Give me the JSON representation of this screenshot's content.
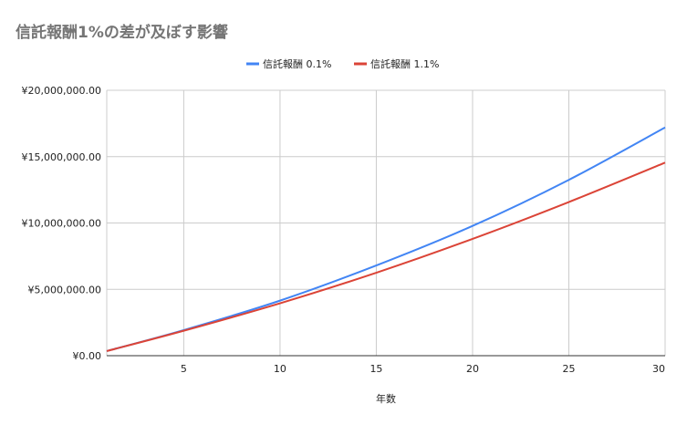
{
  "chart_data": {
    "type": "line",
    "title": "信託報酬1%の差が及ぼす影響",
    "xlabel": "年数",
    "ylabel": "",
    "xlim": [
      1,
      30
    ],
    "ylim": [
      0,
      20000000
    ],
    "x_ticks": [
      5,
      10,
      15,
      20,
      25,
      30
    ],
    "y_ticks": [
      0,
      5000000,
      10000000,
      15000000,
      20000000
    ],
    "y_tick_labels": [
      "¥0.00",
      "¥5,000,000.00",
      "¥10,000,000.00",
      "¥15,000,000.00",
      "¥20,000,000.00"
    ],
    "x_tick_labels": [
      "5",
      "10",
      "15",
      "20",
      "25",
      "30"
    ],
    "grid": true,
    "legend_position": "top",
    "x": [
      1,
      5,
      10,
      15,
      20,
      25,
      30
    ],
    "series": [
      {
        "name": "信託報酬 0.1%",
        "color": "#4285f4",
        "values": [
          350000,
          1930000,
          4150000,
          6800000,
          9780000,
          13250000,
          17200000
        ]
      },
      {
        "name": "信託報酬 1.1%",
        "color": "#db4437",
        "values": [
          350000,
          1880000,
          3950000,
          6250000,
          8800000,
          11580000,
          14550000
        ]
      }
    ]
  }
}
